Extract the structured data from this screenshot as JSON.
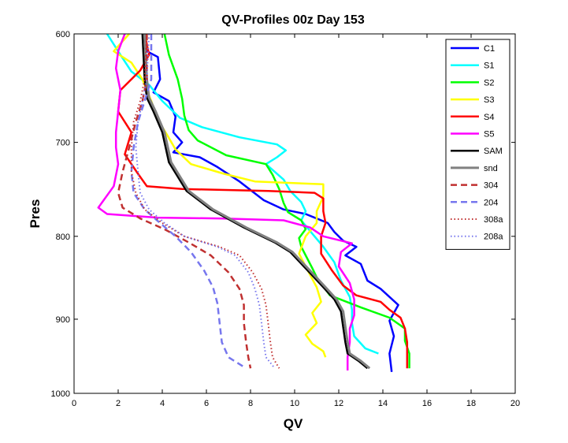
{
  "chart_data": {
    "type": "line",
    "title": "QV-Profiles 00z Day 153",
    "xlabel": "QV",
    "ylabel": "Pres",
    "xlim": [
      0,
      20
    ],
    "ylim": [
      600,
      1000
    ],
    "y_reversed": true,
    "y_scale": "log",
    "xticks": [
      "0",
      "2",
      "4",
      "6",
      "8",
      "10",
      "12",
      "14",
      "16",
      "18",
      "20"
    ],
    "yticks": [
      "600",
      "700",
      "800",
      "900",
      "1000"
    ],
    "legend_position": "top-right",
    "grid": false,
    "series": [
      {
        "name": "C1",
        "color": "#0000ff",
        "style": "solid",
        "width": 2.5,
        "points": [
          [
            3.2,
            600
          ],
          [
            3.3,
            615
          ],
          [
            3.8,
            620
          ],
          [
            3.9,
            640
          ],
          [
            3.6,
            652
          ],
          [
            4.3,
            660
          ],
          [
            4.6,
            675
          ],
          [
            4.5,
            690
          ],
          [
            4.9,
            700
          ],
          [
            4.5,
            710
          ],
          [
            5.7,
            715
          ],
          [
            6.5,
            725
          ],
          [
            7.5,
            740
          ],
          [
            8.6,
            760
          ],
          [
            9.5,
            770
          ],
          [
            10.5,
            775
          ],
          [
            11.0,
            780
          ],
          [
            11.5,
            785
          ],
          [
            11.8,
            795
          ],
          [
            12.2,
            805
          ],
          [
            12.8,
            812
          ],
          [
            12.3,
            822
          ],
          [
            13.0,
            832
          ],
          [
            13.3,
            852
          ],
          [
            13.9,
            862
          ],
          [
            14.7,
            882
          ],
          [
            14.3,
            902
          ],
          [
            14.5,
            922
          ],
          [
            14.3,
            945
          ],
          [
            14.4,
            970
          ]
        ]
      },
      {
        "name": "S1",
        "color": "#00ffff",
        "style": "solid",
        "width": 2.5,
        "points": [
          [
            1.5,
            600
          ],
          [
            2.1,
            618
          ],
          [
            2.6,
            633
          ],
          [
            3.4,
            645
          ],
          [
            4.0,
            660
          ],
          [
            4.8,
            676
          ],
          [
            5.8,
            685
          ],
          [
            7.5,
            695
          ],
          [
            9.2,
            702
          ],
          [
            9.6,
            708
          ],
          [
            9.2,
            715
          ],
          [
            8.7,
            722
          ],
          [
            9.5,
            738
          ],
          [
            9.8,
            750
          ],
          [
            10.3,
            762
          ],
          [
            10.5,
            772
          ],
          [
            10.3,
            782
          ],
          [
            10.7,
            794
          ],
          [
            11.3,
            812
          ],
          [
            11.8,
            830
          ],
          [
            12.1,
            852
          ],
          [
            12.5,
            872
          ],
          [
            12.6,
            888
          ],
          [
            12.6,
            905
          ],
          [
            12.7,
            922
          ],
          [
            13.2,
            938
          ],
          [
            13.8,
            945
          ]
        ]
      },
      {
        "name": "S2",
        "color": "#00ff00",
        "style": "solid",
        "width": 2.5,
        "points": [
          [
            4.1,
            600
          ],
          [
            4.3,
            618
          ],
          [
            4.7,
            640
          ],
          [
            4.9,
            658
          ],
          [
            5.0,
            674
          ],
          [
            5.2,
            688
          ],
          [
            5.6,
            698
          ],
          [
            6.9,
            713
          ],
          [
            8.7,
            722
          ],
          [
            9.0,
            733
          ],
          [
            9.3,
            748
          ],
          [
            9.5,
            763
          ],
          [
            9.7,
            773
          ],
          [
            10.3,
            782
          ],
          [
            10.5,
            792
          ],
          [
            10.2,
            802
          ],
          [
            10.3,
            812
          ],
          [
            10.5,
            822
          ],
          [
            10.8,
            837
          ],
          [
            11.0,
            848
          ],
          [
            11.6,
            870
          ],
          [
            13.0,
            885
          ],
          [
            14.3,
            898
          ],
          [
            15.0,
            912
          ],
          [
            15.0,
            928
          ],
          [
            15.2,
            945
          ],
          [
            15.2,
            965
          ]
        ]
      },
      {
        "name": "S3",
        "color": "#ffff00",
        "style": "solid",
        "width": 2.5,
        "points": [
          [
            2.5,
            600
          ],
          [
            1.8,
            615
          ],
          [
            2.6,
            625
          ],
          [
            3.1,
            640
          ],
          [
            3.5,
            660
          ],
          [
            3.8,
            678
          ],
          [
            4.2,
            692
          ],
          [
            4.6,
            707
          ],
          [
            5.3,
            722
          ],
          [
            6.8,
            732
          ],
          [
            8.2,
            740
          ],
          [
            11.3,
            743
          ],
          [
            11.3,
            756
          ],
          [
            11.0,
            772
          ],
          [
            11.0,
            785
          ],
          [
            10.5,
            800
          ],
          [
            10.2,
            820
          ],
          [
            10.6,
            840
          ],
          [
            11.0,
            860
          ],
          [
            11.2,
            878
          ],
          [
            10.8,
            892
          ],
          [
            11.0,
            905
          ],
          [
            10.5,
            920
          ],
          [
            10.8,
            932
          ],
          [
            11.3,
            942
          ],
          [
            11.4,
            950
          ]
        ]
      },
      {
        "name": "S4",
        "color": "#ff0000",
        "style": "solid",
        "width": 2.5,
        "points": [
          [
            3.2,
            600
          ],
          [
            3.4,
            618
          ],
          [
            3.0,
            632
          ],
          [
            2.1,
            650
          ],
          [
            2.0,
            670
          ],
          [
            2.6,
            690
          ],
          [
            2.3,
            712
          ],
          [
            2.9,
            732
          ],
          [
            3.3,
            745
          ],
          [
            4.9,
            748
          ],
          [
            8.8,
            750
          ],
          [
            10.9,
            752
          ],
          [
            11.3,
            758
          ],
          [
            11.3,
            772
          ],
          [
            11.4,
            785
          ],
          [
            11.2,
            800
          ],
          [
            11.2,
            820
          ],
          [
            11.7,
            840
          ],
          [
            12.2,
            858
          ],
          [
            12.8,
            870
          ],
          [
            13.9,
            878
          ],
          [
            14.3,
            888
          ],
          [
            14.8,
            898
          ],
          [
            15.0,
            912
          ],
          [
            15.1,
            930
          ],
          [
            15.1,
            952
          ],
          [
            15.1,
            965
          ]
        ]
      },
      {
        "name": "S5",
        "color": "#ff00ff",
        "style": "solid",
        "width": 2.5,
        "points": [
          [
            2.3,
            600
          ],
          [
            2.0,
            615
          ],
          [
            1.9,
            630
          ],
          [
            2.1,
            650
          ],
          [
            2.0,
            670
          ],
          [
            1.9,
            690
          ],
          [
            1.9,
            705
          ],
          [
            2.0,
            722
          ],
          [
            1.8,
            745
          ],
          [
            1.1,
            768
          ],
          [
            1.5,
            775
          ],
          [
            3.8,
            779
          ],
          [
            6.8,
            780
          ],
          [
            9.5,
            782
          ],
          [
            10.7,
            790
          ],
          [
            11.3,
            800
          ],
          [
            12.6,
            808
          ],
          [
            12.1,
            818
          ],
          [
            12.0,
            835
          ],
          [
            12.5,
            855
          ],
          [
            12.7,
            875
          ],
          [
            12.7,
            895
          ],
          [
            12.5,
            912
          ],
          [
            12.5,
            930
          ],
          [
            12.4,
            950
          ],
          [
            12.4,
            968
          ]
        ]
      },
      {
        "name": "SAM",
        "color": "#000000",
        "style": "solid",
        "width": 2.5,
        "points": [
          [
            3.1,
            600
          ],
          [
            3.2,
            640
          ],
          [
            3.3,
            657
          ],
          [
            3.6,
            670
          ],
          [
            4.0,
            690
          ],
          [
            4.3,
            720
          ],
          [
            5.1,
            750
          ],
          [
            6.2,
            770
          ],
          [
            7.7,
            790
          ],
          [
            9.1,
            807
          ],
          [
            9.8,
            818
          ],
          [
            10.6,
            840
          ],
          [
            11.3,
            860
          ],
          [
            11.8,
            875
          ],
          [
            12.1,
            890
          ],
          [
            12.2,
            910
          ],
          [
            12.3,
            930
          ],
          [
            12.4,
            945
          ],
          [
            12.9,
            955
          ],
          [
            13.3,
            965
          ]
        ]
      },
      {
        "name": "snd",
        "color": "#808080",
        "style": "solid",
        "width": 3,
        "points": [
          [
            3.2,
            600
          ],
          [
            3.3,
            640
          ],
          [
            3.4,
            657
          ],
          [
            3.7,
            670
          ],
          [
            4.1,
            690
          ],
          [
            4.4,
            720
          ],
          [
            5.2,
            750
          ],
          [
            6.3,
            770
          ],
          [
            7.8,
            790
          ],
          [
            9.2,
            807
          ],
          [
            9.9,
            818
          ],
          [
            10.7,
            840
          ],
          [
            11.4,
            860
          ],
          [
            11.9,
            875
          ],
          [
            12.2,
            890
          ],
          [
            12.3,
            910
          ],
          [
            12.4,
            930
          ],
          [
            12.5,
            945
          ],
          [
            13.0,
            955
          ],
          [
            13.4,
            965
          ]
        ]
      },
      {
        "name": "304",
        "color": "#c03030",
        "style": "dashed",
        "width": 2.5,
        "points": [
          [
            3.3,
            600
          ],
          [
            3.3,
            640
          ],
          [
            3.1,
            660
          ],
          [
            2.8,
            680
          ],
          [
            2.5,
            705
          ],
          [
            2.2,
            730
          ],
          [
            2.0,
            752
          ],
          [
            2.2,
            768
          ],
          [
            3.0,
            780
          ],
          [
            4.1,
            792
          ],
          [
            5.2,
            807
          ],
          [
            6.2,
            822
          ],
          [
            7.0,
            842
          ],
          [
            7.5,
            862
          ],
          [
            7.7,
            882
          ],
          [
            7.7,
            905
          ],
          [
            7.8,
            930
          ],
          [
            7.9,
            950
          ],
          [
            8.0,
            965
          ]
        ]
      },
      {
        "name": "204",
        "color": "#7777ee",
        "style": "dashed",
        "width": 2.5,
        "points": [
          [
            3.5,
            600
          ],
          [
            3.5,
            640
          ],
          [
            3.2,
            660
          ],
          [
            2.9,
            680
          ],
          [
            2.7,
            705
          ],
          [
            2.6,
            730
          ],
          [
            2.7,
            752
          ],
          [
            3.2,
            770
          ],
          [
            3.9,
            785
          ],
          [
            4.6,
            800
          ],
          [
            5.3,
            818
          ],
          [
            5.9,
            840
          ],
          [
            6.3,
            860
          ],
          [
            6.5,
            880
          ],
          [
            6.6,
            905
          ],
          [
            6.7,
            930
          ],
          [
            7.0,
            950
          ],
          [
            7.8,
            965
          ]
        ]
      },
      {
        "name": "308a",
        "color": "#c03030",
        "style": "dotted",
        "width": 2,
        "points": [
          [
            3.3,
            600
          ],
          [
            3.2,
            640
          ],
          [
            3.0,
            660
          ],
          [
            2.7,
            680
          ],
          [
            2.6,
            705
          ],
          [
            2.6,
            730
          ],
          [
            2.8,
            752
          ],
          [
            3.2,
            770
          ],
          [
            4.0,
            785
          ],
          [
            5.0,
            800
          ],
          [
            6.6,
            812
          ],
          [
            7.5,
            822
          ],
          [
            8.1,
            842
          ],
          [
            8.5,
            862
          ],
          [
            8.7,
            882
          ],
          [
            8.8,
            905
          ],
          [
            8.9,
            930
          ],
          [
            9.0,
            950
          ],
          [
            9.3,
            965
          ]
        ]
      },
      {
        "name": "208a",
        "color": "#7777ee",
        "style": "dotted",
        "width": 2,
        "points": [
          [
            3.4,
            600
          ],
          [
            3.3,
            640
          ],
          [
            3.1,
            660
          ],
          [
            2.9,
            680
          ],
          [
            2.8,
            705
          ],
          [
            2.9,
            730
          ],
          [
            3.0,
            752
          ],
          [
            3.4,
            770
          ],
          [
            4.1,
            785
          ],
          [
            5.0,
            800
          ],
          [
            6.5,
            812
          ],
          [
            7.3,
            822
          ],
          [
            7.9,
            842
          ],
          [
            8.2,
            862
          ],
          [
            8.4,
            882
          ],
          [
            8.5,
            905
          ],
          [
            8.6,
            930
          ],
          [
            8.7,
            950
          ],
          [
            9.1,
            965
          ]
        ]
      }
    ]
  }
}
